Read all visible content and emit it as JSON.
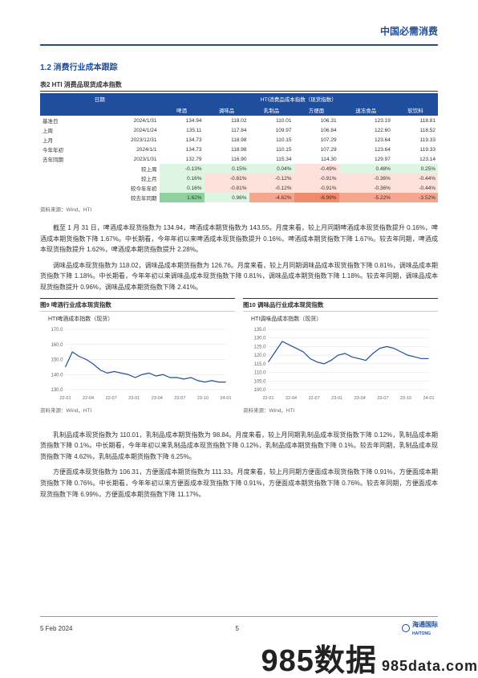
{
  "header": {
    "brand_title": "中国必需消费"
  },
  "section": {
    "num_title": "1.2  消费行业成本跟踪"
  },
  "table": {
    "title": "表2  HTI 消费品现货成本指数",
    "col_group": "HTI消费品成本指数（现货指数）",
    "date_hdr": "日期",
    "cols": [
      "啤酒",
      "调味品",
      "乳制品",
      "方便面",
      "速冻食品",
      "软饮料"
    ],
    "rows": [
      {
        "label": "基准日",
        "date": "2024/1/31",
        "vals": [
          "134.94",
          "118.02",
          "110.01",
          "106.31",
          "123.19",
          "118.81"
        ]
      },
      {
        "label": "上周",
        "date": "2024/1/24",
        "vals": [
          "135.11",
          "117.84",
          "109.97",
          "106.84",
          "122.60",
          "118.52"
        ]
      },
      {
        "label": "上月",
        "date": "2023/12/31",
        "vals": [
          "134.73",
          "118.98",
          "110.15",
          "107.29",
          "123.64",
          "119.33"
        ]
      },
      {
        "label": "今年年初",
        "date": "2024/1/1",
        "vals": [
          "134.73",
          "118.98",
          "110.15",
          "107.29",
          "123.64",
          "119.33"
        ]
      },
      {
        "label": "去年同期",
        "date": "2023/1/31",
        "vals": [
          "132.79",
          "116.90",
          "115.34",
          "114.30",
          "129.97",
          "123.14"
        ]
      }
    ],
    "pct_rows": [
      {
        "label": "较上周",
        "vals": [
          "-0.13%",
          "0.15%",
          "0.04%",
          "-0.49%",
          "0.48%",
          "0.25%"
        ],
        "colors": [
          "#dff5e3",
          "#dff5e3",
          "#dff5e3",
          "#fde2dc",
          "#dff5e3",
          "#dff5e3"
        ]
      },
      {
        "label": "较上月",
        "vals": [
          "0.16%",
          "-0.81%",
          "-0.12%",
          "-0.91%",
          "-0.36%",
          "-0.44%"
        ],
        "colors": [
          "#dff5e3",
          "#fde2dc",
          "#fde2dc",
          "#fde2dc",
          "#fde2dc",
          "#fde2dc"
        ]
      },
      {
        "label": "较今年年初",
        "vals": [
          "0.16%",
          "-0.81%",
          "-0.12%",
          "-0.91%",
          "-0.36%",
          "-0.44%"
        ],
        "colors": [
          "#dff5e3",
          "#fde2dc",
          "#fde2dc",
          "#fde2dc",
          "#fde2dc",
          "#fde2dc"
        ]
      },
      {
        "label": "较去年同期",
        "vals": [
          "1.62%",
          "0.96%",
          "-4.62%",
          "-6.99%",
          "-5.22%",
          "-3.52%"
        ],
        "colors": [
          "#8fd19e",
          "#dff5e3",
          "#f6a58f",
          "#f08a6c",
          "#f6a58f",
          "#f6a58f"
        ]
      }
    ],
    "source": "资料来源：Wind，HTI"
  },
  "paras": {
    "p1": "截至 1 月 31 日，啤酒成本现货指数为 134.94，啤酒成本期货指数为 143.55。月度来看，较上月同期啤酒成本现货指数提升 0.16%，啤酒成本期货指数下降 1.67%。中长期看，今年年初以来啤酒成本现货指数提升 0.16%，啤酒成本期货指数下降 1.67%。较去年同期，啤酒成本现货指数提升 1.62%，啤酒成本期货指数提升 2.28%。",
    "p2": "调味品成本现货指数为 118.02，调味品成本期货指数为 126.76。月度来看，较上月同期调味品成本现货指数下降 0.81%，调味品成本期货指数下降 1.18%。中长期看，今年年初以来调味品成本现货指数下降 0.81%，调味品成本期货指数下降 1.18%。较去年同期，调味品成本现货指数提升 0.96%，调味品成本期货指数下降 2.41%。",
    "p3": "乳制品成本现货指数为 110.01，乳制品成本期货指数为 98.84。月度来看，较上月同期乳制品成本现货指数下降 0.12%，乳制品成本期货指数下降 0.1%。中长期看，今年年初以来乳制品成本现货指数下降 0.12%，乳制品成本期货指数下降 0.1%。较去年同期，乳制品成本现货指数下降 4.62%，乳制品成本期货指数下降 6.25%。",
    "p4": "方便面成本现货指数为 106.31，方便面成本期货指数为 111.33。月度来看，较上月同期方便面成本现货指数下降 0.91%，方便面成本期货指数下降 0.76%。中长期看，今年年初以来方便面成本现货指数下降 0.91%，方便面成本期货指数下降 0.76%。较去年同期，方便面成本现货指数下降 6.99%，方便面成本期货指数下降 11.17%。"
  },
  "charts": {
    "left": {
      "title": "图9  啤酒行业成本现货指数",
      "caption": "HTI啤酒成本指数（现货）",
      "ylim": [
        130,
        170
      ],
      "ytick_step": 10,
      "xticks": [
        "22-01",
        "22-04",
        "22-07",
        "23-01",
        "23-04",
        "23-07",
        "23-10",
        "24-01"
      ],
      "line_color": "#1f4e9c",
      "grid_color": "#e0e0e0",
      "data": [
        145,
        155,
        152,
        150,
        147,
        143,
        141,
        142,
        141,
        140,
        138,
        140,
        141,
        139,
        140,
        138,
        138,
        137,
        138,
        136,
        135,
        136,
        135,
        135
      ],
      "source": "资料来源：Wind，HTI"
    },
    "right": {
      "title": "图10  调味品行业成本现货指数",
      "caption": "HTI调味品成本指数（现货）",
      "ylim": [
        100,
        135
      ],
      "ytick_step": 5,
      "xticks": [
        "22-01",
        "22-04",
        "22-07",
        "23-01",
        "23-04",
        "23-07",
        "23-10",
        "24-01"
      ],
      "line_color": "#1f4e9c",
      "grid_color": "#e0e0e0",
      "data": [
        116,
        122,
        128,
        126,
        124,
        122,
        118,
        116,
        115,
        117,
        120,
        121,
        119,
        118,
        117,
        121,
        124,
        125,
        124,
        122,
        120,
        119,
        118,
        118
      ],
      "source": "资料来源：Wind，HTI"
    }
  },
  "footer": {
    "date": "5 Feb 2024",
    "page": "5",
    "logo_text": "海通国际",
    "logo_sub": "HAITONG"
  },
  "watermark": {
    "big": "985数据",
    "url": "985data.com"
  }
}
